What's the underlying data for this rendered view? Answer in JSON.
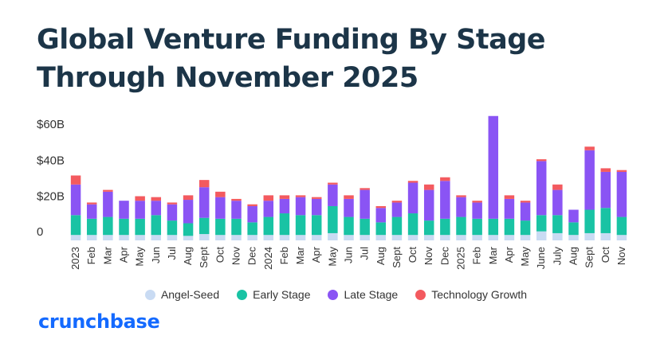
{
  "title": "Global Venture Funding By Stage Through November 2025",
  "brand": "crunchbase",
  "colors": {
    "angel_seed": "#c9dbf3",
    "early_stage": "#19c3a4",
    "late_stage": "#8a54f4",
    "technology_growth": "#f35a5f",
    "title": "#1c3548",
    "brand": "#146aff"
  },
  "chart_data": {
    "type": "bar",
    "stacked": true,
    "title": "Global Venture Funding By Stage Through November 2025",
    "xlabel": "",
    "ylabel": "",
    "ylim": [
      0,
      68
    ],
    "y_ticks": [
      0,
      20,
      40,
      60
    ],
    "y_tick_labels": [
      "0",
      "$20B",
      "$40B",
      "$60B"
    ],
    "grid": false,
    "legend_position": "bottom",
    "categories": [
      "2023",
      "Feb",
      "Mar",
      "Apr",
      "May",
      "Jun",
      "Jul",
      "Aug",
      "Sept",
      "Oct",
      "Nov",
      "Dec",
      "2024",
      "Feb",
      "Mar",
      "Apr",
      "May",
      "Jun",
      "Jul",
      "Aug",
      "Sept",
      "Oct",
      "Nov",
      "Dec",
      "2025",
      "Feb",
      "Mar",
      "Apr",
      "May",
      "June",
      "July",
      "Aug",
      "Sept",
      "Oct",
      "Nov"
    ],
    "series": [
      {
        "name": "Angel-Seed",
        "color": "#c9dbf3",
        "values": [
          3,
          3,
          3,
          3,
          3,
          3,
          3,
          2.5,
          3.5,
          3,
          3,
          3,
          3,
          3,
          3,
          3,
          4,
          3,
          3,
          3,
          3,
          3,
          3,
          3,
          3,
          3,
          3,
          3,
          3,
          5,
          4,
          3,
          4,
          4,
          3
        ]
      },
      {
        "name": "Early Stage",
        "color": "#19c3a4",
        "values": [
          11,
          9,
          10,
          9,
          9,
          11,
          8,
          7,
          9,
          9,
          9,
          7,
          10,
          12,
          11,
          11,
          15,
          10,
          9,
          7,
          10,
          12,
          8,
          9,
          10,
          9,
          9,
          9,
          8,
          9,
          10,
          7,
          13,
          14,
          10
        ]
      },
      {
        "name": "Late Stage",
        "color": "#8a54f4",
        "values": [
          17,
          8,
          14,
          10,
          10,
          8,
          9,
          13,
          17,
          12,
          10,
          9,
          9,
          8,
          10,
          9,
          12,
          10,
          16,
          8,
          8,
          17,
          17,
          21,
          11,
          9,
          57,
          11,
          10,
          30,
          14,
          7,
          33,
          20,
          25
        ]
      },
      {
        "name": "Technology Growth",
        "color": "#f35a5f",
        "values": [
          5,
          1,
          1,
          0,
          2.5,
          2,
          1,
          2.5,
          4,
          3,
          1,
          1,
          3,
          2,
          1,
          1,
          1,
          2,
          1,
          1,
          1,
          1,
          3,
          2,
          1,
          1,
          0,
          2,
          1,
          1,
          3,
          0,
          2,
          2,
          1
        ]
      }
    ]
  }
}
